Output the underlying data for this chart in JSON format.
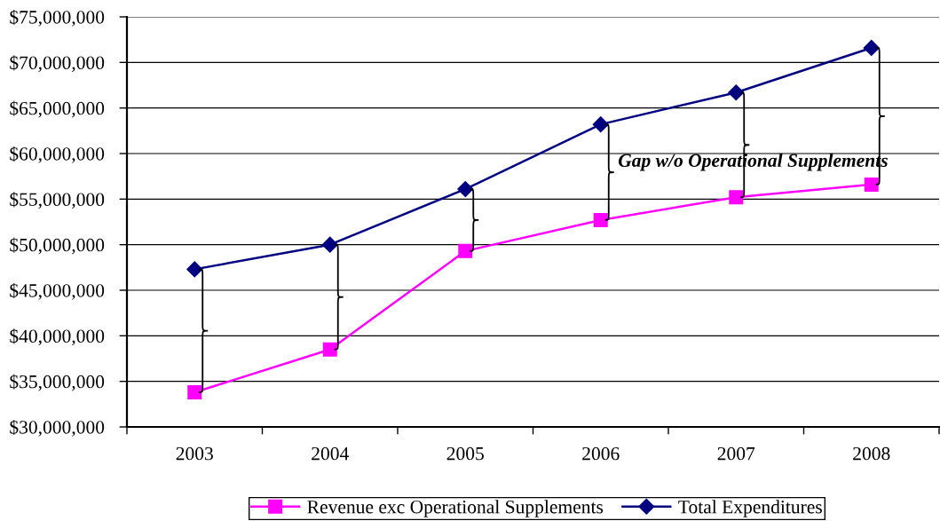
{
  "chart_data": {
    "type": "line",
    "categories": [
      "2003",
      "2004",
      "2005",
      "2006",
      "2007",
      "2008"
    ],
    "series": [
      {
        "name": "Revenue exc Operational Supplements",
        "color": "#ff00ff",
        "marker": "square",
        "values": [
          33800000,
          38500000,
          49300000,
          52700000,
          55200000,
          56600000
        ]
      },
      {
        "name": "Total Expenditures",
        "color": "#000080",
        "marker": "diamond",
        "values": [
          47300000,
          50000000,
          56100000,
          63200000,
          66700000,
          71600000
        ]
      }
    ],
    "ylim": [
      30000000,
      75000000
    ],
    "yticks": [
      {
        "value": 30000000,
        "label": "$30,000,000"
      },
      {
        "value": 35000000,
        "label": "$35,000,000"
      },
      {
        "value": 40000000,
        "label": "$40,000,000"
      },
      {
        "value": 45000000,
        "label": "$45,000,000"
      },
      {
        "value": 50000000,
        "label": "$50,000,000"
      },
      {
        "value": 55000000,
        "label": "$55,000,000"
      },
      {
        "value": 60000000,
        "label": "$60,000,000"
      },
      {
        "value": 65000000,
        "label": "$65,000,000"
      },
      {
        "value": 70000000,
        "label": "$70,000,000"
      },
      {
        "value": 75000000,
        "label": "$75,000,000"
      }
    ],
    "annotations": [
      {
        "text": "Gap w/o Operational Supplements",
        "x": "2006",
        "y": 52700000
      }
    ],
    "grid": "y",
    "legend": "bottom",
    "line_style": "solid"
  }
}
